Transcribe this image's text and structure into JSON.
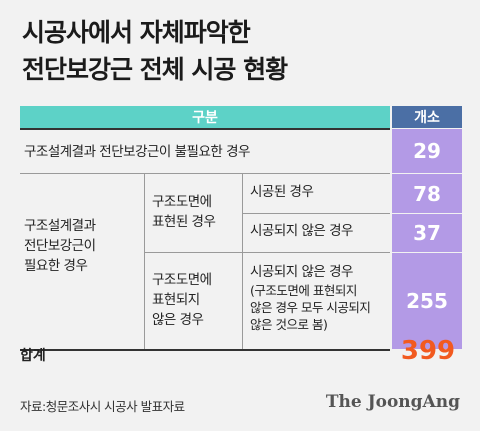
{
  "title": {
    "line1": "시공사에서 자체파악한",
    "line2": "전단보강근 전체 시공 현황"
  },
  "header": {
    "category": "구분",
    "count": "개소"
  },
  "rows": {
    "not_needed": {
      "label": "구조설계결과 전단보강근이 불필요한 경우",
      "value": "29"
    },
    "needed_group": {
      "label_line1": "구조설계결과",
      "label_line2": "전단보강근이",
      "label_line3": "필요한 경우"
    },
    "shown_group": {
      "label_line1": "구조도면에",
      "label_line2": "표현된 경우"
    },
    "shown_built": {
      "label": "시공된 경우",
      "value": "78"
    },
    "shown_not_built": {
      "label": "시공되지 않은 경우",
      "value": "37"
    },
    "not_shown_group": {
      "label_line1": "구조도면에",
      "label_line2": "표현되지",
      "label_line3": "않은 경우"
    },
    "not_shown_not_built": {
      "label_line1": "시공되지 않은 경우",
      "label_line2": "(구조도면에 표현되지",
      "label_line3": "않은 경우 모두 시공되지",
      "label_line4": "않은 것으로 봄)",
      "value": "255"
    }
  },
  "total": {
    "label": "합계",
    "value": "399"
  },
  "source": "자료:청문조사시 시공사 발표자료",
  "logo": "The JoongAng",
  "colors": {
    "header_teal": "#5dd2c7",
    "header_blue": "#4b6fa5",
    "value_purple": "#b39ae6",
    "total_orange": "#f25a1f"
  }
}
